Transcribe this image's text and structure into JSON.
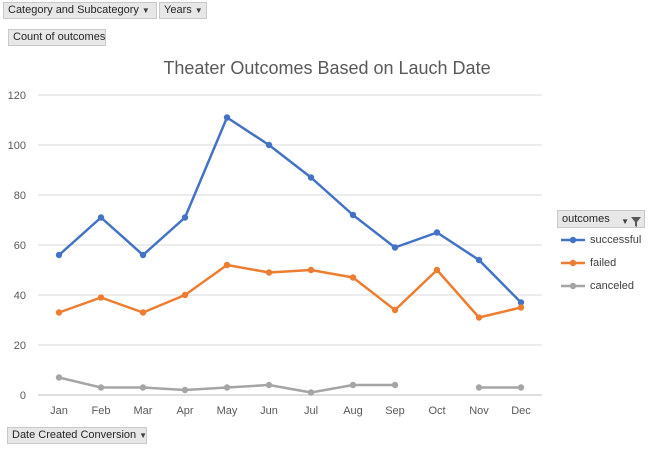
{
  "pivot": {
    "row_field": "Category and Subcategory",
    "column_field": "Years",
    "value_field": "Count of outcomes",
    "axis_field": "Date Created Conversion",
    "legend_header": "outcomes"
  },
  "chart_data": {
    "type": "line",
    "title": "Theater Outcomes Based on Lauch Date",
    "categories": [
      "Jan",
      "Feb",
      "Mar",
      "Apr",
      "May",
      "Jun",
      "Jul",
      "Aug",
      "Sep",
      "Oct",
      "Nov",
      "Dec"
    ],
    "ylim": [
      0,
      120
    ],
    "yticks": [
      0,
      20,
      40,
      60,
      80,
      100,
      120
    ],
    "grid": true,
    "legend_position": "right",
    "series": [
      {
        "name": "successful",
        "color": "#4472c4",
        "values": [
          56,
          71,
          56,
          71,
          111,
          100,
          87,
          72,
          59,
          65,
          54,
          37
        ]
      },
      {
        "name": "failed",
        "color": "#ed7d31",
        "values": [
          33,
          39,
          33,
          40,
          52,
          49,
          50,
          47,
          34,
          50,
          31,
          35
        ]
      },
      {
        "name": "canceled",
        "color": "#a5a5a5",
        "values": [
          7,
          3,
          3,
          2,
          3,
          4,
          1,
          4,
          4,
          null,
          3,
          3
        ]
      }
    ]
  }
}
